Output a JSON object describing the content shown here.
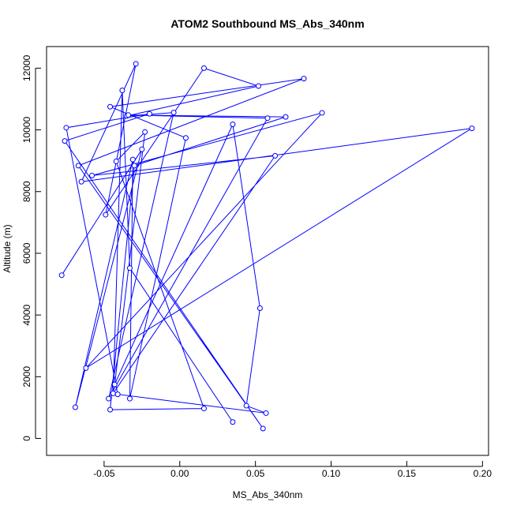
{
  "chart_data": {
    "type": "line",
    "title": "ATOM2 Southbound MS_Abs_340nm",
    "xlabel": "MS_Abs_340nm",
    "ylabel": "Altitude (m)",
    "xlim": [
      -0.088,
      0.204
    ],
    "ylim": [
      -550,
      12700
    ],
    "x_ticks": [
      -0.05,
      0.0,
      0.05,
      0.1,
      0.15,
      0.2
    ],
    "x_tick_labels": [
      "-0.05",
      "0.00",
      "0.05",
      "0.10",
      "0.15",
      "0.20"
    ],
    "y_ticks": [
      0,
      2000,
      4000,
      6000,
      8000,
      10000,
      12000
    ],
    "y_tick_labels": [
      "0",
      "2000",
      "4000",
      "6000",
      "8000",
      "10000",
      "12000"
    ],
    "grid": false,
    "series_color": "#0000ff",
    "marker": "open-circle",
    "series": [
      {
        "name": "",
        "points": [
          [
            0.035,
            530
          ],
          [
            -0.033,
            5520
          ],
          [
            -0.038,
            11280
          ],
          [
            -0.044,
            1460
          ],
          [
            0.063,
            9160
          ],
          [
            -0.058,
            8520
          ],
          [
            0.094,
            10550
          ],
          [
            -0.062,
            2280
          ],
          [
            0.193,
            10050
          ],
          [
            -0.065,
            8320
          ],
          [
            -0.029,
            12140
          ],
          [
            -0.049,
            7250
          ],
          [
            0.016,
            12000
          ],
          [
            0.052,
            11420
          ],
          [
            -0.035,
            10450
          ],
          [
            -0.004,
            10560
          ],
          [
            -0.047,
            1290
          ],
          [
            0.058,
            10380
          ],
          [
            -0.034,
            10480
          ],
          [
            0.07,
            10420
          ],
          [
            -0.03,
            8840
          ],
          [
            -0.046,
            930
          ],
          [
            0.016,
            970
          ],
          [
            -0.042,
            8980
          ],
          [
            -0.023,
            9930
          ],
          [
            -0.043,
            1750
          ],
          [
            0.035,
            10180
          ],
          [
            0.053,
            4220
          ],
          [
            0.044,
            1060
          ],
          [
            0.057,
            820
          ],
          [
            -0.041,
            1430
          ],
          [
            -0.075,
            10070
          ],
          [
            -0.02,
            10520
          ],
          [
            -0.076,
            9640
          ],
          [
            0.055,
            320
          ],
          [
            -0.067,
            8840
          ],
          [
            0.082,
            11660
          ],
          [
            -0.046,
            10750
          ],
          [
            0.004,
            9740
          ],
          [
            -0.033,
            1290
          ],
          [
            -0.031,
            9040
          ],
          [
            -0.069,
            1010
          ],
          [
            -0.025,
            9370
          ],
          [
            -0.078,
            5290
          ]
        ]
      }
    ]
  }
}
